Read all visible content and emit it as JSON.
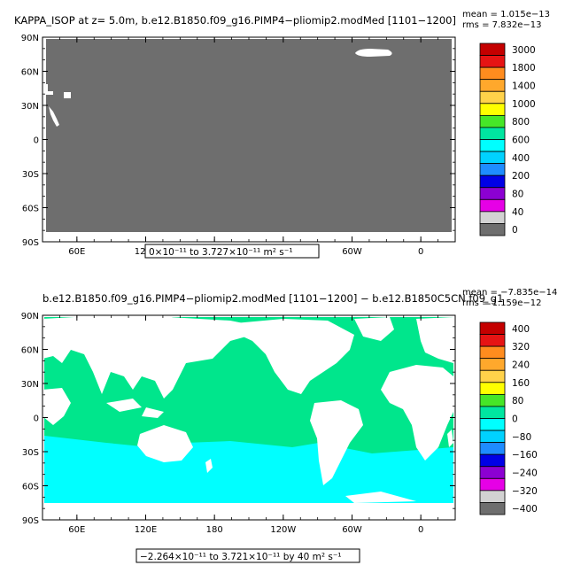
{
  "panels": [
    {
      "title": "KAPPA_ISOP at z=    5.0m, b.e12.B1850.f09_g16.PIMP4−pliomip2.modMed [1101−1200]",
      "stats_mean": "mean = 1.015e−13",
      "stats_rms": "rms = 7.832e−13",
      "range_label": "0×10⁻¹¹ to 3.727×10⁻¹¹ m² s⁻¹",
      "colorbar": {
        "labels": [
          "3000",
          "1800",
          "1400",
          "1000",
          "800",
          "600",
          "400",
          "200",
          "80",
          "40",
          "0"
        ],
        "colors": [
          "#c40000",
          "#e61414",
          "#ff8c1e",
          "#ffa82c",
          "#ffd24a",
          "#ffff00",
          "#46e628",
          "#00e6a0",
          "#00ffff",
          "#00d2ff",
          "#1e8cff",
          "#0000e6",
          "#8c00d2",
          "#e600e6",
          "#d2d2d2",
          "#6e6e6e"
        ]
      },
      "field_color": "#6e6e6e"
    },
    {
      "title": "b.e12.B1850.f09_g16.PIMP4−pliomip2.modMed [1101−1200] − b.e12.B1850C5CN.f09_g1",
      "stats_mean": "mean = −7.835e−14",
      "stats_rms": "rms = 1.159e−12",
      "range_label": "−2.264×10⁻¹¹ to 3.721×10⁻¹¹ by 40 m² s⁻¹",
      "colorbar": {
        "labels": [
          "400",
          "320",
          "240",
          "160",
          "80",
          "0",
          "−80",
          "−160",
          "−240",
          "−320",
          "−400"
        ],
        "colors": [
          "#c40000",
          "#e61414",
          "#ff8c1e",
          "#ffa82c",
          "#ffd24a",
          "#ffff00",
          "#46e628",
          "#00e6a0",
          "#00ffff",
          "#00d2ff",
          "#1e8cff",
          "#0000e6",
          "#8c00d2",
          "#e600e6",
          "#d2d2d2",
          "#6e6e6e"
        ]
      },
      "field_color": "#00e68c"
    }
  ],
  "chart_data": [
    {
      "type": "heatmap",
      "title": "KAPPA_ISOP at z=    5.0m, b.e12.B1850.f09_g16.PIMP4−pliomip2.modMed [1101−1200]",
      "x_ticks": [
        "60E",
        "120E",
        "180",
        "120W",
        "60W",
        "0"
      ],
      "y_ticks": [
        "90N",
        "60N",
        "30N",
        "0",
        "30S",
        "60S",
        "90S"
      ],
      "colorbar_levels": [
        0,
        40,
        80,
        200,
        400,
        600,
        800,
        1000,
        1400,
        1800,
        3000
      ],
      "value_range": [
        0,
        3.727e-11
      ],
      "mean": 1.015e-13,
      "rms": 7.832e-13
    },
    {
      "type": "heatmap",
      "title": "b.e12.B1850.f09_g16.PIMP4−pliomip2.modMed [1101−1200] − b.e12.B1850C5CN.f09_g1",
      "x_ticks": [
        "60E",
        "120E",
        "180",
        "120W",
        "60W",
        "0"
      ],
      "y_ticks": [
        "90N",
        "60N",
        "30N",
        "0",
        "30S",
        "60S",
        "90S"
      ],
      "colorbar_levels": [
        -400,
        -320,
        -240,
        -160,
        -80,
        0,
        80,
        160,
        240,
        320,
        400
      ],
      "value_range": [
        -2.264e-11,
        3.721e-11
      ],
      "contour_interval": 40,
      "mean": -7.835e-14,
      "rms": 1.159e-12
    }
  ],
  "axes": {
    "x_ticks": [
      "60E",
      "120E",
      "180",
      "120W",
      "60W",
      "0"
    ],
    "y_ticks": [
      "90N",
      "60N",
      "30N",
      "0",
      "30S",
      "60S",
      "90S"
    ]
  }
}
